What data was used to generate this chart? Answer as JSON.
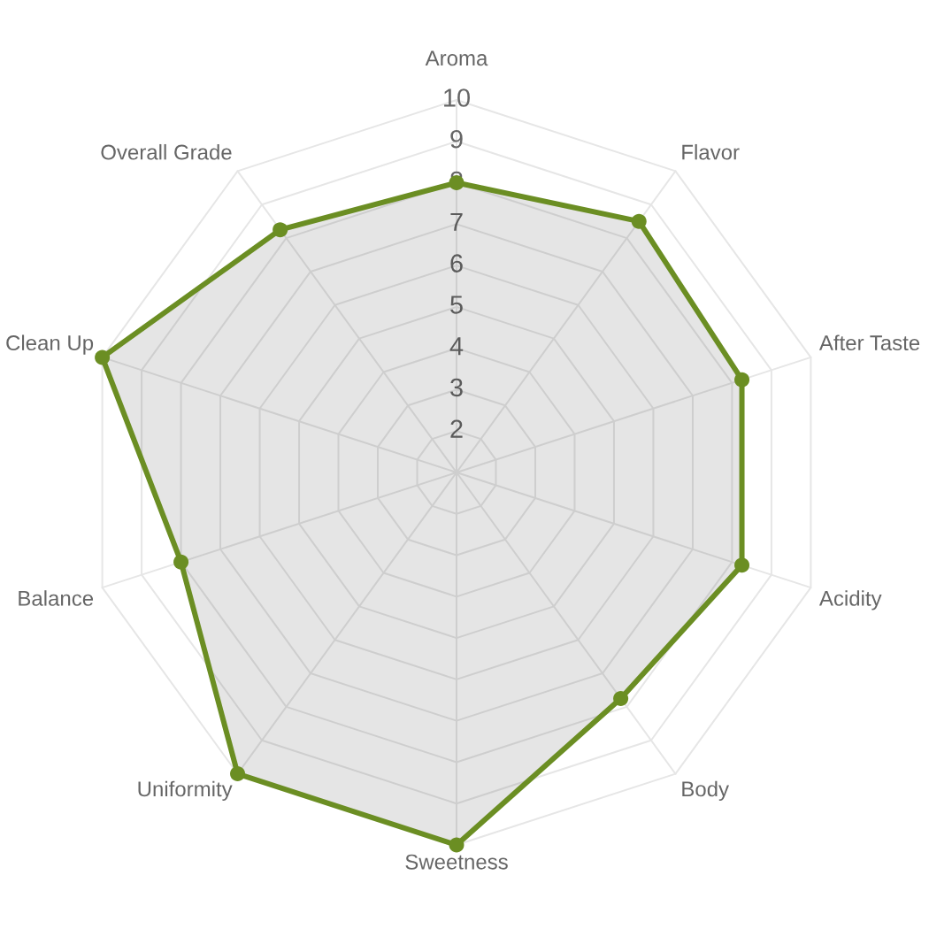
{
  "chart_data": {
    "type": "radar",
    "categories": [
      "Aroma",
      "Flavor",
      "After Taste",
      "Acidity",
      "Body",
      "Sweetness",
      "Uniformity",
      "Balance",
      "Clean Up",
      "Overall Grade"
    ],
    "series": [
      {
        "color": "#6b8e23",
        "values": [
          8,
          8.5,
          8.25,
          8.25,
          7.75,
          10,
          10,
          8,
          10,
          8.25
        ]
      }
    ],
    "ylim": [
      1,
      10
    ],
    "yticks": [
      2,
      3,
      4,
      5,
      6,
      7,
      8,
      9,
      10
    ],
    "grid": true,
    "marker": "circle"
  }
}
